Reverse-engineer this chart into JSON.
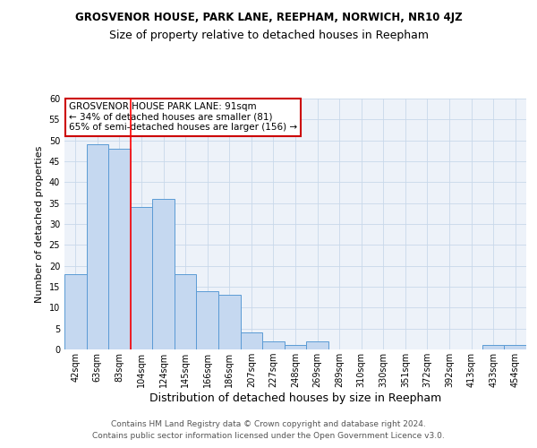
{
  "title": "GROSVENOR HOUSE, PARK LANE, REEPHAM, NORWICH, NR10 4JZ",
  "subtitle": "Size of property relative to detached houses in Reepham",
  "xlabel": "Distribution of detached houses by size in Reepham",
  "ylabel": "Number of detached properties",
  "categories": [
    "42sqm",
    "63sqm",
    "83sqm",
    "104sqm",
    "124sqm",
    "145sqm",
    "166sqm",
    "186sqm",
    "207sqm",
    "227sqm",
    "248sqm",
    "269sqm",
    "289sqm",
    "310sqm",
    "330sqm",
    "351sqm",
    "372sqm",
    "392sqm",
    "413sqm",
    "433sqm",
    "454sqm"
  ],
  "values": [
    18,
    49,
    48,
    34,
    36,
    18,
    14,
    13,
    4,
    2,
    1,
    2,
    0,
    0,
    0,
    0,
    0,
    0,
    0,
    1,
    1
  ],
  "bar_color": "#c5d8f0",
  "bar_edge_color": "#5b9bd5",
  "red_line_x": 2.5,
  "annotation_text": "GROSVENOR HOUSE PARK LANE: 91sqm\n← 34% of detached houses are smaller (81)\n65% of semi-detached houses are larger (156) →",
  "annotation_box_color": "#ffffff",
  "annotation_box_edge_color": "#cc0000",
  "ylim": [
    0,
    60
  ],
  "yticks": [
    0,
    5,
    10,
    15,
    20,
    25,
    30,
    35,
    40,
    45,
    50,
    55,
    60
  ],
  "footnote1": "Contains HM Land Registry data © Crown copyright and database right 2024.",
  "footnote2": "Contains public sector information licensed under the Open Government Licence v3.0.",
  "background_color": "#ffffff",
  "grid_color": "#c8d8ea",
  "title_fontsize": 8.5,
  "subtitle_fontsize": 9,
  "xlabel_fontsize": 9,
  "ylabel_fontsize": 8,
  "tick_fontsize": 7,
  "annotation_fontsize": 7.5,
  "footnote_fontsize": 6.5
}
